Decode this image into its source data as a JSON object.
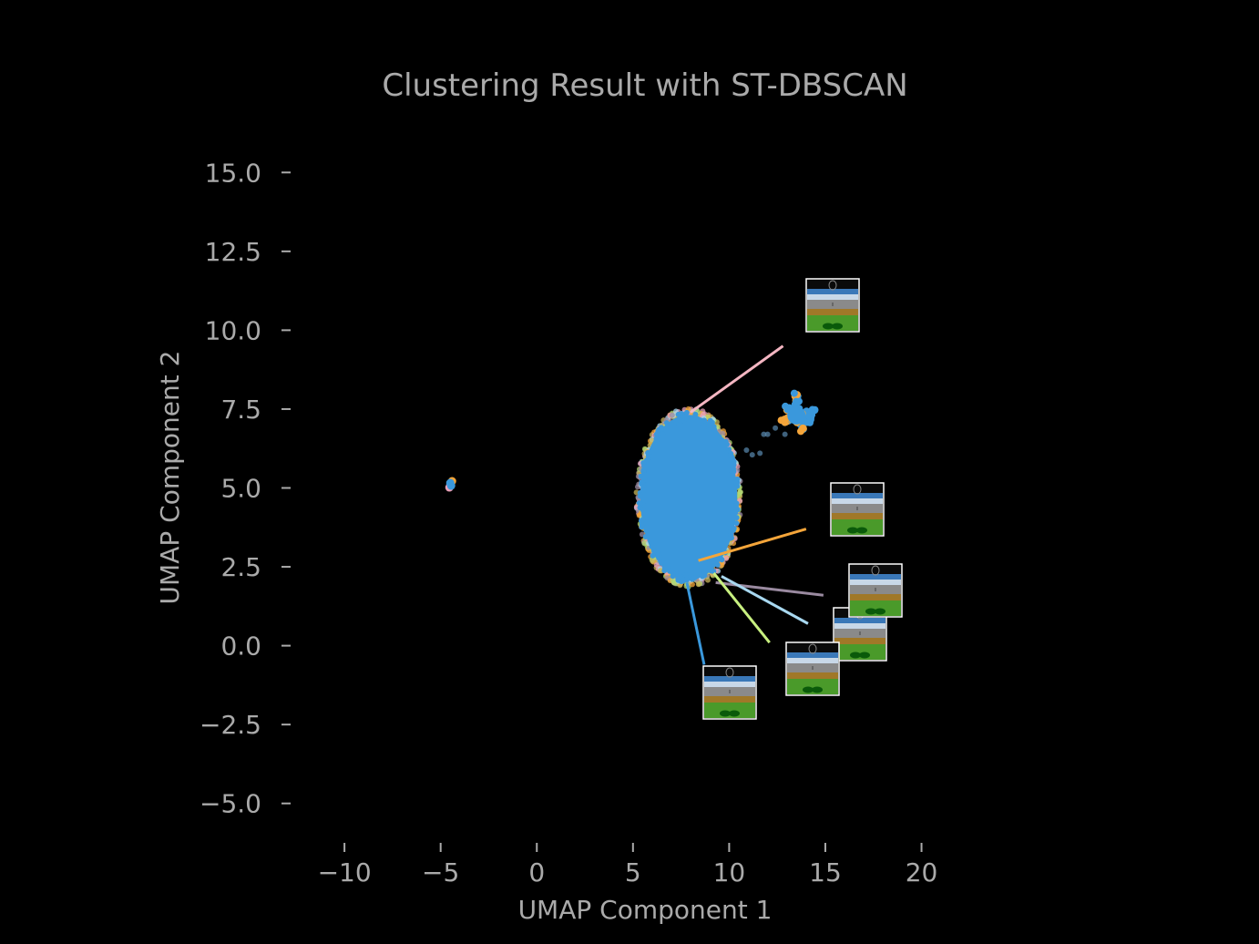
{
  "chart_data": {
    "type": "scatter",
    "title": "Clustering Result with ST-DBSCAN",
    "xlabel": "UMAP Component 1",
    "ylabel": "UMAP Component 2",
    "xlim": [
      -12.8,
      24
    ],
    "ylim": [
      -6.25,
      16.25
    ],
    "x_ticks": [
      -10,
      -5,
      0,
      5,
      10,
      15,
      20
    ],
    "x_tick_labels": [
      "−10",
      "−5",
      "0",
      "5",
      "10",
      "15",
      "20"
    ],
    "y_ticks": [
      -5.0,
      -2.5,
      0.0,
      2.5,
      5.0,
      7.5,
      10.0,
      12.5,
      15.0
    ],
    "y_tick_labels": [
      "−5.0",
      "−2.5",
      "0.0",
      "2.5",
      "5.0",
      "7.5",
      "10.0",
      "12.5",
      "15.0"
    ],
    "grid": false,
    "background": "#000000",
    "text_color": "#aaaaaa",
    "point_color": "#3a98dc",
    "edge_colors": [
      "#f4a53a",
      "#c8b45a",
      "#e8a0b8",
      "#9a8aa0",
      "#b0d870",
      "#a8d8f0"
    ],
    "clusters": [
      {
        "center": [
          7.9,
          4.7
        ],
        "x_halfwidth": 2.6,
        "y_halfwidth": 2.7
      },
      {
        "center": [
          13.5,
          7.3
        ],
        "x_halfwidth": 0.9,
        "y_halfwidth": 0.55
      },
      {
        "center": [
          -4.5,
          5.1
        ],
        "x_halfwidth": 0.15,
        "y_halfwidth": 0.15
      }
    ],
    "thumbnail_annotations": [
      {
        "point": [
          8.0,
          7.4
        ],
        "thumb_anchor": [
          12.8,
          9.5
        ],
        "line_color": "#f4b6c2"
      },
      {
        "point": [
          8.4,
          2.7
        ],
        "thumb_anchor": [
          14.0,
          3.7
        ],
        "line_color": "#f4a53a"
      },
      {
        "point": [
          9.3,
          2.0
        ],
        "thumb_anchor": [
          14.9,
          1.6
        ],
        "line_color": "#9a8aa0"
      },
      {
        "point": [
          9.6,
          2.2
        ],
        "thumb_anchor": [
          14.1,
          0.7
        ],
        "line_color": "#a8d8f0"
      },
      {
        "point": [
          9.2,
          2.3
        ],
        "thumb_anchor": [
          12.1,
          0.1
        ],
        "line_color": "#c8f080"
      },
      {
        "point": [
          7.8,
          2.0
        ],
        "thumb_anchor": [
          8.7,
          -0.6
        ],
        "line_color": "#3a98dc"
      }
    ]
  }
}
